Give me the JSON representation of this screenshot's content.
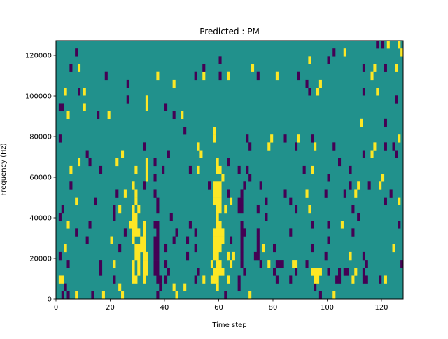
{
  "chart_data": {
    "type": "heatmap",
    "title": "Predicted : PM",
    "xlabel": "Time step",
    "ylabel": "Frequency (Hz)",
    "xlim": [
      0,
      128
    ],
    "ylim": [
      0,
      127250
    ],
    "n_cols": 128,
    "n_rows": 33,
    "xticks": [
      0,
      20,
      40,
      60,
      80,
      100,
      120
    ],
    "xtick_labels": [
      "0",
      "20",
      "40",
      "60",
      "80",
      "100",
      "120"
    ],
    "yticks": [
      0,
      20000,
      40000,
      60000,
      80000,
      100000,
      120000
    ],
    "ytick_labels": [
      "0",
      "20000",
      "40000",
      "60000",
      "80000",
      "100000",
      "120000"
    ],
    "colors": {
      "background": "#21918c",
      "high": "#fde725",
      "low": "#440154"
    },
    "value_legend": {
      "0": "background",
      "1": "high",
      "-1": "low"
    },
    "runs_format": "[row, col_start, col_end, value]",
    "runs": [
      [
        0,
        2,
        2,
        -1
      ],
      [
        0,
        4,
        4,
        -1
      ],
      [
        0,
        7,
        7,
        1
      ],
      [
        0,
        13,
        13,
        -1
      ],
      [
        0,
        17,
        17,
        1
      ],
      [
        0,
        24,
        24,
        1
      ],
      [
        0,
        37,
        37,
        -1
      ],
      [
        0,
        44,
        44,
        1
      ],
      [
        0,
        62,
        62,
        -1
      ],
      [
        0,
        71,
        71,
        1
      ],
      [
        0,
        97,
        97,
        -1
      ],
      [
        0,
        102,
        102,
        1
      ],
      [
        1,
        3,
        3,
        -1
      ],
      [
        1,
        23,
        23,
        1
      ],
      [
        1,
        38,
        38,
        -1
      ],
      [
        1,
        43,
        43,
        1
      ],
      [
        1,
        47,
        47,
        1
      ],
      [
        1,
        59,
        59,
        1
      ],
      [
        1,
        67,
        67,
        -1
      ],
      [
        1,
        95,
        95,
        -1
      ],
      [
        2,
        1,
        2,
        1
      ],
      [
        2,
        21,
        21,
        -1
      ],
      [
        2,
        28,
        29,
        1
      ],
      [
        2,
        32,
        32,
        1
      ],
      [
        2,
        37,
        38,
        -1
      ],
      [
        2,
        40,
        40,
        -1
      ],
      [
        2,
        51,
        51,
        -1
      ],
      [
        2,
        54,
        54,
        1
      ],
      [
        2,
        57,
        59,
        1
      ],
      [
        2,
        63,
        63,
        1
      ],
      [
        2,
        67,
        67,
        -1
      ],
      [
        2,
        81,
        81,
        -1
      ],
      [
        2,
        86,
        86,
        -1
      ],
      [
        2,
        95,
        96,
        1
      ],
      [
        2,
        103,
        104,
        -1
      ],
      [
        2,
        109,
        109,
        1
      ],
      [
        2,
        113,
        114,
        -1
      ],
      [
        2,
        119,
        119,
        -1
      ],
      [
        2,
        121,
        121,
        1
      ],
      [
        3,
        16,
        16,
        -1
      ],
      [
        3,
        28,
        28,
        1
      ],
      [
        3,
        30,
        30,
        1
      ],
      [
        3,
        32,
        33,
        1
      ],
      [
        3,
        36,
        37,
        -1
      ],
      [
        3,
        41,
        41,
        -1
      ],
      [
        3,
        52,
        52,
        -1
      ],
      [
        3,
        58,
        61,
        1
      ],
      [
        3,
        69,
        69,
        -1
      ],
      [
        3,
        80,
        80,
        -1
      ],
      [
        3,
        88,
        88,
        -1
      ],
      [
        3,
        94,
        97,
        1
      ],
      [
        3,
        100,
        100,
        -1
      ],
      [
        3,
        104,
        104,
        -1
      ],
      [
        3,
        106,
        107,
        -1
      ],
      [
        3,
        110,
        110,
        1
      ],
      [
        3,
        113,
        113,
        -1
      ],
      [
        4,
        4,
        4,
        -1
      ],
      [
        4,
        16,
        16,
        -1
      ],
      [
        4,
        21,
        21,
        1
      ],
      [
        4,
        28,
        28,
        1
      ],
      [
        4,
        30,
        30,
        1
      ],
      [
        4,
        32,
        33,
        1
      ],
      [
        4,
        36,
        37,
        -1
      ],
      [
        4,
        40,
        40,
        -1
      ],
      [
        4,
        57,
        57,
        1
      ],
      [
        4,
        59,
        60,
        1
      ],
      [
        4,
        64,
        64,
        1
      ],
      [
        4,
        68,
        68,
        -1
      ],
      [
        4,
        75,
        75,
        -1
      ],
      [
        4,
        78,
        78,
        1
      ],
      [
        4,
        81,
        83,
        -1
      ],
      [
        4,
        87,
        88,
        1
      ],
      [
        4,
        92,
        92,
        -1
      ],
      [
        4,
        114,
        114,
        -1
      ],
      [
        4,
        127,
        127,
        -1
      ],
      [
        5,
        1,
        1,
        -1
      ],
      [
        5,
        29,
        30,
        1
      ],
      [
        5,
        32,
        33,
        1
      ],
      [
        5,
        36,
        37,
        -1
      ],
      [
        5,
        48,
        48,
        -1
      ],
      [
        5,
        58,
        59,
        1
      ],
      [
        5,
        63,
        63,
        1
      ],
      [
        5,
        65,
        65,
        1
      ],
      [
        5,
        68,
        68,
        -1
      ],
      [
        5,
        73,
        74,
        -1
      ],
      [
        5,
        99,
        99,
        -1
      ],
      [
        5,
        108,
        108,
        1
      ],
      [
        5,
        113,
        113,
        -1
      ],
      [
        6,
        3,
        3,
        1
      ],
      [
        6,
        23,
        23,
        -1
      ],
      [
        6,
        29,
        32,
        1
      ],
      [
        6,
        36,
        37,
        -1
      ],
      [
        6,
        40,
        40,
        -1
      ],
      [
        6,
        51,
        51,
        -1
      ],
      [
        6,
        58,
        60,
        1
      ],
      [
        6,
        68,
        68,
        -1
      ],
      [
        6,
        74,
        74,
        -1
      ],
      [
        6,
        76,
        76,
        1
      ],
      [
        6,
        80,
        80,
        -1
      ],
      [
        6,
        94,
        94,
        -1
      ],
      [
        6,
        124,
        124,
        1
      ],
      [
        7,
        11,
        11,
        -1
      ],
      [
        7,
        20,
        20,
        1
      ],
      [
        7,
        28,
        28,
        1
      ],
      [
        7,
        31,
        32,
        1
      ],
      [
        7,
        36,
        37,
        -1
      ],
      [
        7,
        43,
        43,
        -1
      ],
      [
        7,
        48,
        48,
        -1
      ],
      [
        7,
        58,
        61,
        1
      ],
      [
        7,
        64,
        64,
        -1
      ],
      [
        7,
        68,
        68,
        -1
      ],
      [
        7,
        74,
        74,
        -1
      ],
      [
        7,
        100,
        100,
        -1
      ],
      [
        8,
        7,
        7,
        -1
      ],
      [
        8,
        25,
        25,
        -1
      ],
      [
        8,
        28,
        30,
        1
      ],
      [
        8,
        32,
        32,
        1
      ],
      [
        8,
        37,
        37,
        -1
      ],
      [
        8,
        44,
        44,
        -1
      ],
      [
        8,
        51,
        51,
        -1
      ],
      [
        8,
        58,
        61,
        1
      ],
      [
        8,
        68,
        69,
        -1
      ],
      [
        8,
        74,
        74,
        -1
      ],
      [
        8,
        86,
        86,
        -1
      ],
      [
        8,
        109,
        109,
        -1
      ],
      [
        9,
        4,
        4,
        1
      ],
      [
        9,
        12,
        12,
        -1
      ],
      [
        9,
        27,
        29,
        1
      ],
      [
        9,
        32,
        32,
        1
      ],
      [
        9,
        36,
        37,
        -1
      ],
      [
        9,
        49,
        49,
        -1
      ],
      [
        9,
        59,
        60,
        1
      ],
      [
        9,
        68,
        68,
        -1
      ],
      [
        9,
        94,
        94,
        -1
      ],
      [
        9,
        100,
        100,
        -1
      ],
      [
        9,
        105,
        105,
        1
      ],
      [
        9,
        126,
        126,
        -1
      ],
      [
        10,
        1,
        1,
        -1
      ],
      [
        10,
        21,
        21,
        -1
      ],
      [
        10,
        28,
        29,
        1
      ],
      [
        10,
        42,
        42,
        -1
      ],
      [
        10,
        59,
        59,
        1
      ],
      [
        10,
        77,
        77,
        -1
      ],
      [
        10,
        111,
        111,
        -1
      ],
      [
        11,
        2,
        2,
        -1
      ],
      [
        11,
        21,
        21,
        -1
      ],
      [
        11,
        23,
        23,
        1
      ],
      [
        11,
        28,
        28,
        1
      ],
      [
        11,
        30,
        30,
        1
      ],
      [
        11,
        37,
        37,
        -1
      ],
      [
        11,
        59,
        60,
        1
      ],
      [
        11,
        62,
        62,
        1
      ],
      [
        11,
        67,
        68,
        -1
      ],
      [
        11,
        74,
        74,
        -1
      ],
      [
        11,
        88,
        88,
        -1
      ],
      [
        11,
        93,
        93,
        1
      ],
      [
        11,
        109,
        109,
        -1
      ],
      [
        12,
        7,
        7,
        1
      ],
      [
        12,
        14,
        14,
        -1
      ],
      [
        12,
        29,
        29,
        1
      ],
      [
        12,
        37,
        37,
        -1
      ],
      [
        12,
        58,
        60,
        1
      ],
      [
        12,
        64,
        64,
        1
      ],
      [
        12,
        67,
        68,
        -1
      ],
      [
        12,
        77,
        77,
        -1
      ],
      [
        12,
        86,
        86,
        -1
      ],
      [
        12,
        121,
        121,
        -1
      ],
      [
        12,
        126,
        126,
        1
      ],
      [
        13,
        22,
        22,
        -1
      ],
      [
        13,
        25,
        25,
        1
      ],
      [
        13,
        29,
        29,
        1
      ],
      [
        13,
        36,
        36,
        -1
      ],
      [
        13,
        58,
        60,
        1
      ],
      [
        13,
        63,
        63,
        -1
      ],
      [
        13,
        68,
        68,
        -1
      ],
      [
        13,
        84,
        84,
        -1
      ],
      [
        13,
        92,
        92,
        1
      ],
      [
        13,
        99,
        99,
        -1
      ],
      [
        13,
        106,
        106,
        -1
      ],
      [
        13,
        110,
        110,
        1
      ],
      [
        13,
        123,
        123,
        -1
      ],
      [
        14,
        5,
        5,
        -1
      ],
      [
        14,
        28,
        28,
        1
      ],
      [
        14,
        32,
        32,
        -1
      ],
      [
        14,
        56,
        56,
        -1
      ],
      [
        14,
        58,
        60,
        1
      ],
      [
        14,
        69,
        69,
        -1
      ],
      [
        14,
        75,
        75,
        -1
      ],
      [
        14,
        108,
        108,
        -1
      ],
      [
        14,
        111,
        111,
        1
      ],
      [
        14,
        115,
        115,
        -1
      ],
      [
        14,
        119,
        119,
        1
      ],
      [
        15,
        33,
        33,
        1
      ],
      [
        15,
        36,
        36,
        -1
      ],
      [
        15,
        61,
        61,
        1
      ],
      [
        15,
        71,
        71,
        -1
      ],
      [
        15,
        100,
        100,
        -1
      ],
      [
        15,
        120,
        120,
        1
      ],
      [
        16,
        5,
        5,
        1
      ],
      [
        16,
        16,
        16,
        -1
      ],
      [
        16,
        29,
        29,
        1
      ],
      [
        16,
        33,
        33,
        1
      ],
      [
        16,
        39,
        39,
        -1
      ],
      [
        16,
        49,
        49,
        -1
      ],
      [
        16,
        52,
        52,
        1
      ],
      [
        16,
        59,
        60,
        1
      ],
      [
        16,
        67,
        67,
        -1
      ],
      [
        16,
        70,
        70,
        -1
      ],
      [
        16,
        91,
        91,
        -1
      ],
      [
        16,
        94,
        94,
        1
      ],
      [
        16,
        108,
        108,
        -1
      ],
      [
        17,
        8,
        8,
        1
      ],
      [
        17,
        12,
        12,
        -1
      ],
      [
        17,
        22,
        22,
        1
      ],
      [
        17,
        33,
        33,
        1
      ],
      [
        17,
        36,
        36,
        -1
      ],
      [
        17,
        59,
        59,
        1
      ],
      [
        17,
        63,
        63,
        -1
      ],
      [
        17,
        104,
        104,
        -1
      ],
      [
        18,
        11,
        11,
        -1
      ],
      [
        18,
        24,
        24,
        1
      ],
      [
        18,
        41,
        41,
        -1
      ],
      [
        18,
        53,
        53,
        1
      ],
      [
        18,
        113,
        113,
        -1
      ],
      [
        18,
        116,
        116,
        1
      ],
      [
        18,
        125,
        125,
        -1
      ],
      [
        19,
        32,
        32,
        -1
      ],
      [
        19,
        52,
        52,
        1
      ],
      [
        19,
        71,
        71,
        -1
      ],
      [
        19,
        78,
        78,
        1
      ],
      [
        19,
        88,
        88,
        -1
      ],
      [
        19,
        95,
        95,
        1
      ],
      [
        19,
        102,
        102,
        -1
      ],
      [
        19,
        117,
        117,
        1
      ],
      [
        19,
        121,
        121,
        -1
      ],
      [
        19,
        124,
        124,
        -1
      ],
      [
        20,
        1,
        1,
        -1
      ],
      [
        20,
        58,
        58,
        1
      ],
      [
        20,
        70,
        70,
        -1
      ],
      [
        20,
        79,
        79,
        1
      ],
      [
        20,
        84,
        84,
        -1
      ],
      [
        20,
        89,
        89,
        1
      ],
      [
        20,
        94,
        94,
        -1
      ],
      [
        20,
        126,
        126,
        1
      ],
      [
        21,
        47,
        47,
        -1
      ],
      [
        21,
        58,
        58,
        1
      ],
      [
        22,
        112,
        112,
        1
      ],
      [
        22,
        121,
        121,
        -1
      ],
      [
        23,
        4,
        4,
        1
      ],
      [
        23,
        15,
        15,
        -1
      ],
      [
        23,
        19,
        19,
        1
      ],
      [
        23,
        43,
        43,
        -1
      ],
      [
        23,
        46,
        46,
        1
      ],
      [
        24,
        1,
        2,
        -1
      ],
      [
        24,
        10,
        10,
        1
      ],
      [
        24,
        33,
        33,
        1
      ],
      [
        24,
        40,
        40,
        -1
      ],
      [
        25,
        26,
        26,
        -1
      ],
      [
        25,
        33,
        33,
        1
      ],
      [
        25,
        125,
        125,
        -1
      ],
      [
        26,
        3,
        3,
        1
      ],
      [
        26,
        8,
        8,
        -1
      ],
      [
        26,
        10,
        10,
        1
      ],
      [
        26,
        93,
        93,
        -1
      ],
      [
        26,
        96,
        96,
        1
      ],
      [
        26,
        113,
        113,
        -1
      ],
      [
        26,
        118,
        118,
        1
      ],
      [
        27,
        26,
        26,
        -1
      ],
      [
        27,
        43,
        43,
        1
      ],
      [
        27,
        92,
        92,
        -1
      ],
      [
        27,
        97,
        97,
        1
      ],
      [
        28,
        18,
        18,
        -1
      ],
      [
        28,
        37,
        37,
        1
      ],
      [
        28,
        51,
        51,
        -1
      ],
      [
        28,
        54,
        54,
        1
      ],
      [
        28,
        60,
        60,
        -1
      ],
      [
        28,
        63,
        63,
        1
      ],
      [
        28,
        74,
        74,
        -1
      ],
      [
        28,
        81,
        81,
        1
      ],
      [
        28,
        89,
        89,
        -1
      ],
      [
        28,
        116,
        116,
        1
      ],
      [
        29,
        5,
        5,
        -1
      ],
      [
        29,
        8,
        8,
        1
      ],
      [
        29,
        54,
        54,
        -1
      ],
      [
        29,
        72,
        72,
        1
      ],
      [
        29,
        113,
        113,
        -1
      ],
      [
        29,
        117,
        117,
        1
      ],
      [
        29,
        121,
        121,
        -1
      ],
      [
        29,
        125,
        125,
        1
      ],
      [
        30,
        60,
        60,
        -1
      ],
      [
        30,
        93,
        93,
        1
      ],
      [
        30,
        100,
        100,
        -1
      ],
      [
        31,
        7,
        7,
        -1
      ],
      [
        31,
        102,
        102,
        -1
      ],
      [
        31,
        106,
        106,
        1
      ],
      [
        31,
        127,
        127,
        1
      ],
      [
        32,
        118,
        118,
        -1
      ],
      [
        32,
        120,
        120,
        -1
      ],
      [
        32,
        122,
        122,
        1
      ],
      [
        32,
        126,
        126,
        1
      ]
    ]
  }
}
